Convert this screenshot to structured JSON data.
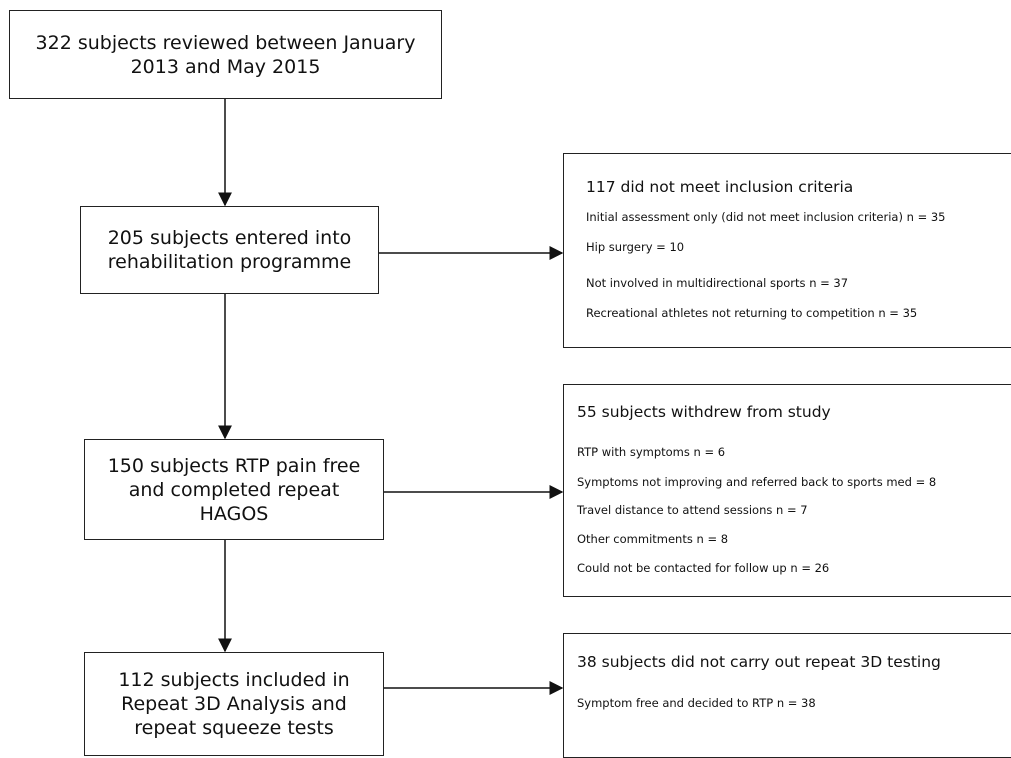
{
  "boxes": {
    "reviewed": "322 subjects reviewed between January\n2013 and May 2015",
    "entered": "205 subjects entered into\nrehabilitation programme",
    "rtp": "150 subjects RTP pain free\nand completed repeat\nHAGOS",
    "included": "112 subjects included in\nRepeat 3D Analysis and\nrepeat squeeze tests"
  },
  "exclusions": [
    {
      "title": "117 did not meet inclusion criteria",
      "items": [
        "Initial assessment only (did not meet inclusion criteria)  n = 35",
        "Hip surgery = 10",
        "Not involved in multidirectional sports  n = 37",
        "Recreational athletes not returning to competition  n = 35"
      ]
    },
    {
      "title": "55 subjects withdrew from study",
      "items": [
        "RTP with symptoms  n = 6",
        "Symptoms not improving and referred back to sports med = 8",
        "Travel distance to attend sessions  n = 7",
        "Other commitments  n = 8",
        "Could not be contacted for follow up  n = 26"
      ]
    },
    {
      "title": "38 subjects did not carry out repeat 3D testing",
      "items": [
        "Symptom free and decided to RTP n = 38"
      ]
    }
  ],
  "colors": {
    "line": "#111111",
    "border": "#222222"
  }
}
